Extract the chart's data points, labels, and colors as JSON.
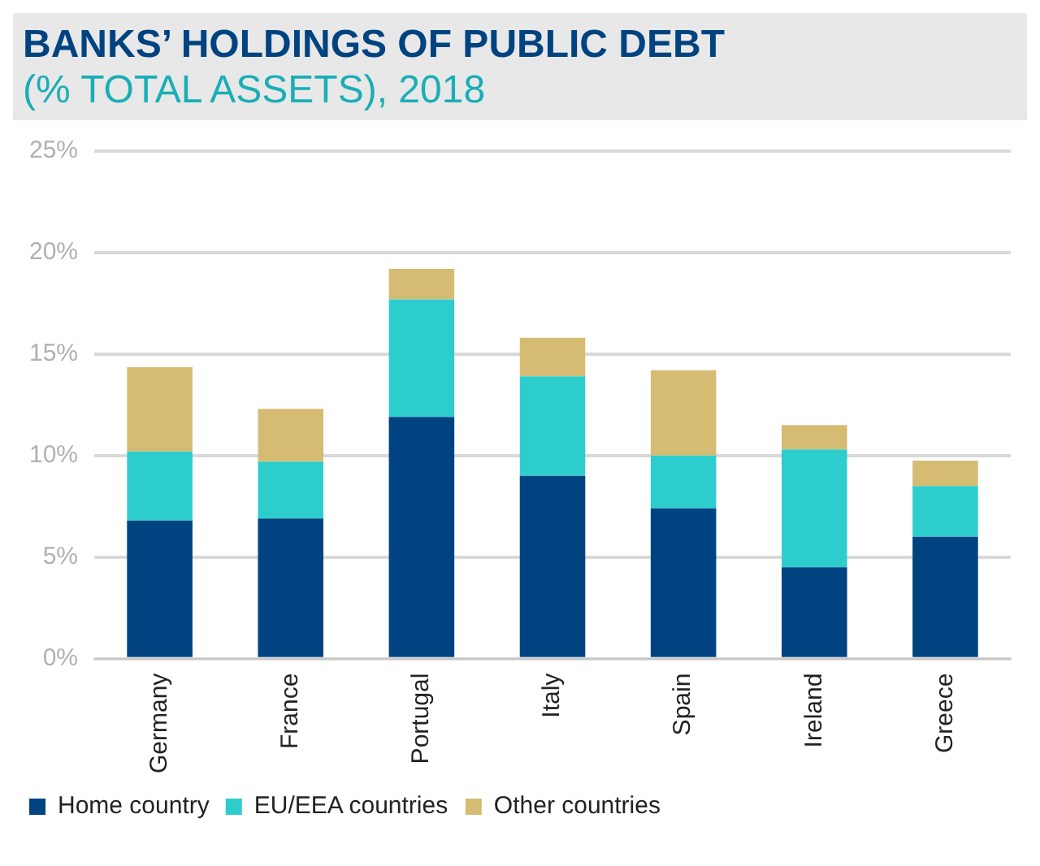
{
  "chart_data": {
    "type": "bar",
    "title": "BANKS’ HOLDINGS OF PUBLIC DEBT",
    "subtitle": "(% TOTAL ASSETS), 2018",
    "categories": [
      "Germany",
      "France",
      "Portugal",
      "Italy",
      "Spain",
      "Ireland",
      "Greece"
    ],
    "stacked": true,
    "series": [
      {
        "name": "Home country",
        "color": "#004381",
        "values": [
          6.8,
          6.9,
          11.9,
          9.0,
          7.4,
          4.5,
          6.0
        ]
      },
      {
        "name": "EU/EEA countries",
        "color": "#2ecdcd",
        "values": [
          3.4,
          2.8,
          5.8,
          4.9,
          2.6,
          5.8,
          2.5
        ]
      },
      {
        "name": "Other countries",
        "color": "#d6bc73",
        "values": [
          4.15,
          2.6,
          1.5,
          1.9,
          4.2,
          1.2,
          1.25
        ]
      }
    ],
    "ylim": [
      0,
      25
    ],
    "yticks": [
      {
        "value": 0,
        "label": "0%"
      },
      {
        "value": 5,
        "label": "5%"
      },
      {
        "value": 10,
        "label": "10%"
      },
      {
        "value": 15,
        "label": "15%"
      },
      {
        "value": 20,
        "label": "20%"
      },
      {
        "value": 25,
        "label": "25%"
      }
    ],
    "grid": "y",
    "legend": "bottom"
  }
}
